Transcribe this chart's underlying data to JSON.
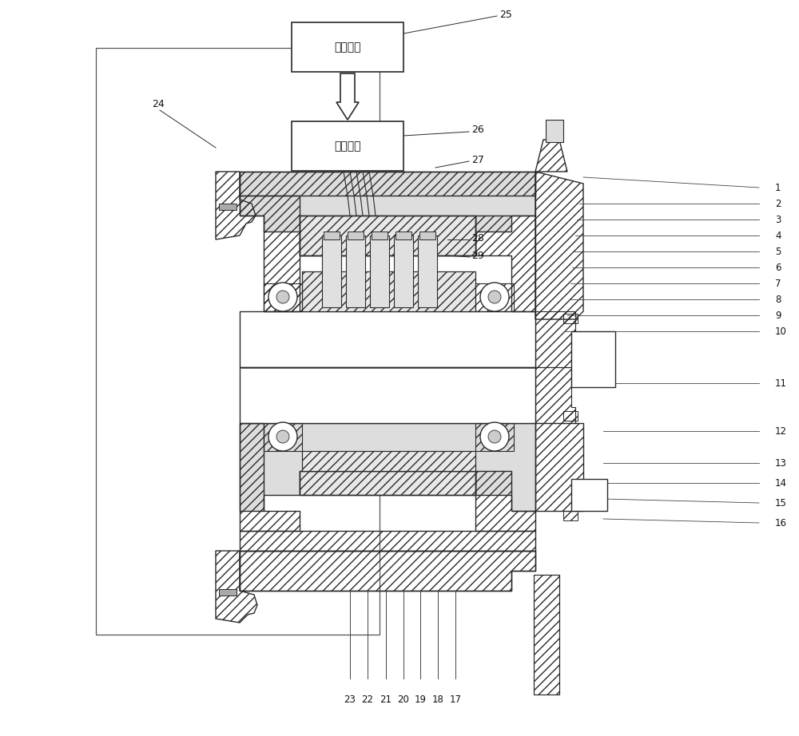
{
  "bg_color": "#ffffff",
  "lc": "#2a2a2a",
  "hc": "#888888",
  "box1_text": "测控系统",
  "box2_text": "液压系统",
  "fig_w": 10.0,
  "fig_h": 9.22,
  "right_labels": [
    "1",
    "2",
    "3",
    "4",
    "5",
    "6",
    "7",
    "8",
    "9",
    "10",
    "11",
    "12",
    "13",
    "14",
    "15",
    "16"
  ],
  "bottom_labels": [
    "17",
    "18",
    "19",
    "20",
    "21",
    "22",
    "23"
  ],
  "label_font": 8.5
}
